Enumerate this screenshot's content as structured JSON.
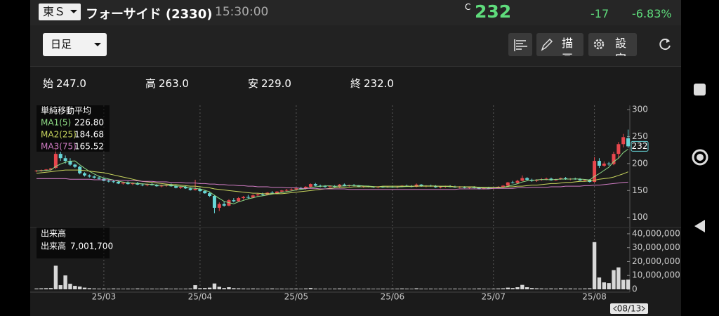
{
  "header": {
    "market": "東Ｓ",
    "name": "フォーサイド (2330)",
    "time": "15:30:00",
    "flag": "C",
    "price": "232",
    "change": "-17",
    "change_pct": "-6.83%"
  },
  "toolbar": {
    "period": "日足",
    "draw": "描画",
    "settings": "設定"
  },
  "ohlc_row": [
    {
      "label": "始",
      "value": "247.0"
    },
    {
      "label": "高",
      "value": "263.0"
    },
    {
      "label": "安",
      "value": "229.0"
    },
    {
      "label": "終",
      "value": "232.0"
    }
  ],
  "chart_data": {
    "type": "candlestick",
    "ma_title": "単純移動平均",
    "up_color": "#e8474d",
    "down_color": "#67d6d8",
    "cursor_date": "08/13",
    "grid": true,
    "categories": [
      null,
      null,
      null,
      null,
      null,
      null,
      null,
      null,
      null,
      null,
      null,
      null,
      null,
      null,
      "25/03",
      null,
      null,
      null,
      null,
      null,
      null,
      null,
      null,
      null,
      null,
      null,
      null,
      null,
      null,
      null,
      null,
      null,
      null,
      null,
      "25/04",
      null,
      null,
      null,
      null,
      null,
      null,
      null,
      null,
      null,
      null,
      null,
      null,
      null,
      null,
      null,
      null,
      null,
      null,
      null,
      "25/05",
      null,
      null,
      null,
      null,
      null,
      null,
      null,
      null,
      null,
      null,
      null,
      null,
      null,
      null,
      null,
      null,
      null,
      null,
      null,
      "25/06",
      null,
      null,
      null,
      null,
      null,
      null,
      null,
      null,
      null,
      null,
      null,
      null,
      null,
      null,
      null,
      null,
      null,
      null,
      null,
      null,
      "25/07",
      null,
      null,
      null,
      null,
      null,
      null,
      null,
      null,
      null,
      null,
      null,
      null,
      null,
      null,
      null,
      null,
      null,
      null,
      null,
      null,
      "25/08",
      null,
      null,
      null,
      null,
      null,
      null,
      null
    ],
    "ohlc": [
      [
        186,
        188,
        184,
        187
      ],
      [
        187,
        189,
        185,
        188
      ],
      [
        188,
        190,
        186,
        189
      ],
      [
        189,
        192,
        187,
        191
      ],
      [
        192,
        235,
        190,
        218
      ],
      [
        218,
        222,
        205,
        210
      ],
      [
        210,
        215,
        200,
        205
      ],
      [
        205,
        210,
        196,
        198
      ],
      [
        198,
        200,
        192,
        194
      ],
      [
        194,
        196,
        180,
        182
      ],
      [
        182,
        184,
        176,
        178
      ],
      [
        178,
        180,
        174,
        176
      ],
      [
        176,
        178,
        172,
        174
      ],
      [
        174,
        176,
        170,
        172
      ],
      [
        172,
        173,
        167,
        168
      ],
      [
        168,
        170,
        165,
        167
      ],
      [
        167,
        169,
        164,
        166
      ],
      [
        166,
        168,
        162,
        163
      ],
      [
        163,
        166,
        161,
        165
      ],
      [
        165,
        167,
        161,
        162
      ],
      [
        162,
        165,
        160,
        164
      ],
      [
        164,
        166,
        160,
        161
      ],
      [
        161,
        163,
        158,
        160
      ],
      [
        160,
        163,
        158,
        162
      ],
      [
        162,
        164,
        159,
        160
      ],
      [
        160,
        162,
        157,
        158
      ],
      [
        158,
        161,
        156,
        159
      ],
      [
        159,
        162,
        157,
        161
      ],
      [
        161,
        163,
        157,
        158
      ],
      [
        158,
        160,
        154,
        155
      ],
      [
        155,
        158,
        153,
        157
      ],
      [
        157,
        159,
        153,
        154
      ],
      [
        154,
        156,
        150,
        151
      ],
      [
        151,
        170,
        150,
        153
      ],
      [
        153,
        155,
        147,
        149
      ],
      [
        149,
        151,
        144,
        145
      ],
      [
        145,
        147,
        138,
        140
      ],
      [
        140,
        142,
        108,
        118
      ],
      [
        118,
        128,
        112,
        125
      ],
      [
        125,
        130,
        120,
        122
      ],
      [
        122,
        134,
        121,
        132
      ],
      [
        132,
        136,
        128,
        130
      ],
      [
        130,
        138,
        129,
        136
      ],
      [
        136,
        140,
        133,
        138
      ],
      [
        138,
        142,
        135,
        137
      ],
      [
        137,
        143,
        136,
        141
      ],
      [
        141,
        145,
        139,
        143
      ],
      [
        143,
        146,
        140,
        142
      ],
      [
        142,
        147,
        141,
        146
      ],
      [
        146,
        149,
        144,
        145
      ],
      [
        145,
        149,
        143,
        148
      ],
      [
        148,
        151,
        146,
        150
      ],
      [
        150,
        153,
        148,
        151
      ],
      [
        151,
        154,
        149,
        152
      ],
      [
        152,
        155,
        150,
        154
      ],
      [
        154,
        157,
        152,
        153
      ],
      [
        153,
        158,
        152,
        157
      ],
      [
        157,
        163,
        156,
        162
      ],
      [
        162,
        164,
        158,
        159
      ],
      [
        159,
        161,
        156,
        158
      ],
      [
        158,
        160,
        155,
        157
      ],
      [
        157,
        159,
        155,
        158
      ],
      [
        158,
        160,
        156,
        157
      ],
      [
        157,
        162,
        156,
        161
      ],
      [
        161,
        163,
        158,
        159
      ],
      [
        159,
        161,
        157,
        160
      ],
      [
        160,
        162,
        158,
        159
      ],
      [
        159,
        160,
        156,
        157
      ],
      [
        157,
        159,
        155,
        158
      ],
      [
        158,
        159,
        156,
        157
      ],
      [
        157,
        158,
        155,
        156
      ],
      [
        156,
        158,
        154,
        157
      ],
      [
        157,
        158,
        155,
        156
      ],
      [
        156,
        158,
        155,
        157
      ],
      [
        157,
        159,
        155,
        156
      ],
      [
        156,
        158,
        154,
        157
      ],
      [
        157,
        160,
        156,
        159
      ],
      [
        159,
        161,
        157,
        158
      ],
      [
        158,
        160,
        156,
        157
      ],
      [
        157,
        163,
        156,
        161
      ],
      [
        161,
        162,
        157,
        158
      ],
      [
        158,
        160,
        156,
        159
      ],
      [
        159,
        161,
        157,
        158
      ],
      [
        158,
        160,
        155,
        156
      ],
      [
        156,
        158,
        154,
        157
      ],
      [
        157,
        159,
        155,
        158
      ],
      [
        158,
        160,
        156,
        157
      ],
      [
        157,
        159,
        155,
        156
      ],
      [
        156,
        158,
        154,
        157
      ],
      [
        157,
        158,
        154,
        155
      ],
      [
        155,
        157,
        153,
        156
      ],
      [
        156,
        158,
        154,
        155
      ],
      [
        155,
        157,
        152,
        153
      ],
      [
        153,
        156,
        152,
        155
      ],
      [
        155,
        157,
        153,
        154
      ],
      [
        154,
        156,
        152,
        155
      ],
      [
        155,
        158,
        154,
        157
      ],
      [
        157,
        160,
        156,
        159
      ],
      [
        159,
        166,
        158,
        165
      ],
      [
        165,
        168,
        163,
        164
      ],
      [
        164,
        170,
        163,
        168
      ],
      [
        168,
        178,
        167,
        173
      ],
      [
        173,
        175,
        168,
        170
      ],
      [
        170,
        172,
        166,
        168
      ],
      [
        168,
        171,
        166,
        170
      ],
      [
        170,
        173,
        168,
        171
      ],
      [
        171,
        174,
        169,
        172
      ],
      [
        172,
        174,
        168,
        169
      ],
      [
        169,
        172,
        168,
        171
      ],
      [
        171,
        174,
        170,
        173
      ],
      [
        173,
        175,
        170,
        171
      ],
      [
        171,
        173,
        169,
        172
      ],
      [
        172,
        174,
        170,
        171
      ],
      [
        171,
        173,
        168,
        169
      ],
      [
        169,
        171,
        167,
        170
      ],
      [
        170,
        171,
        165,
        166
      ],
      [
        166,
        212,
        165,
        205
      ],
      [
        205,
        210,
        192,
        196
      ],
      [
        196,
        204,
        194,
        200
      ],
      [
        200,
        203,
        196,
        199
      ],
      [
        199,
        222,
        197,
        218
      ],
      [
        218,
        240,
        210,
        236
      ],
      [
        236,
        255,
        230,
        249
      ],
      [
        247,
        263,
        229,
        232
      ]
    ],
    "ylim": [
      84,
      308
    ],
    "yticks": [
      100,
      150,
      200,
      250,
      300
    ],
    "series": [
      {
        "name": "MA1(5)",
        "color": "#8fdc86",
        "legend_value": "226.80",
        "values": [
          186.4,
          186.8,
          187.4,
          188.2,
          194.6,
          199.2,
          202.4,
          204.4,
          205,
          197.8,
          191.4,
          185.6,
          180.8,
          176.4,
          173.6,
          171.4,
          169.4,
          167.2,
          165.8,
          164.6,
          164,
          163,
          162.4,
          161.8,
          161.4,
          160.2,
          159.8,
          160,
          159.2,
          158.6,
          158,
          157,
          155,
          154,
          152.8,
          150.4,
          147.6,
          141,
          135.4,
          130,
          127.4,
          125.4,
          129,
          131.6,
          134.6,
          136.4,
          139,
          140.2,
          141.8,
          143.4,
          144.8,
          146.2,
          148,
          149.2,
          151,
          152,
          153.4,
          155.6,
          157,
          157.8,
          158.6,
          158.8,
          157.8,
          158.2,
          158.4,
          159,
          159.2,
          159.2,
          158.6,
          158.2,
          157.4,
          157,
          156.8,
          156.6,
          156.4,
          156.6,
          157,
          157.4,
          157.4,
          158.4,
          158.6,
          158.6,
          158.6,
          158.4,
          157.6,
          157.6,
          157.2,
          156.8,
          157,
          156.6,
          156.2,
          155.8,
          155.2,
          154.8,
          154.6,
          154.4,
          155,
          156,
          158,
          160,
          162.6,
          165.8,
          168,
          168.6,
          169.8,
          170.4,
          170.2,
          170,
          170.6,
          171.2,
          171.2,
          171.2,
          171.6,
          171.2,
          170.6,
          169.6,
          176.2,
          181.2,
          187.4,
          193.2,
          203.6,
          209.8,
          220.4,
          226.8
        ]
      },
      {
        "name": "MA2(25)",
        "color": "#c9d65e",
        "legend_value": "184.68",
        "values": [
          182,
          183,
          184,
          185,
          186,
          187,
          188,
          188,
          188,
          188,
          187,
          186,
          185,
          184,
          183,
          181,
          179,
          177,
          175,
          173,
          171,
          169,
          167,
          166,
          165,
          164,
          163,
          162,
          161,
          161,
          160,
          159,
          158,
          158,
          157,
          156,
          155,
          153,
          152,
          151,
          150,
          149,
          148,
          147,
          146,
          145,
          145,
          144,
          144,
          144,
          144,
          144,
          145,
          146,
          147,
          148,
          149,
          150,
          151,
          152,
          153,
          154,
          155,
          155,
          156,
          156,
          157,
          157,
          157,
          157,
          157,
          157,
          158,
          158,
          158,
          158,
          158,
          158,
          158,
          158,
          158,
          158,
          158,
          158,
          158,
          158,
          158,
          157,
          157,
          157,
          157,
          157,
          156,
          156,
          156,
          156,
          156,
          156,
          157,
          157,
          158,
          158,
          159,
          160,
          160,
          161,
          162,
          163,
          163,
          164,
          165,
          165,
          166,
          167,
          167,
          168,
          169,
          171,
          172,
          173,
          175,
          178,
          181,
          184.68
        ]
      },
      {
        "name": "MA3(75)",
        "color": "#d07cc4",
        "legend_value": "165.52",
        "values": [
          172,
          172,
          172,
          172,
          172,
          172,
          172,
          171,
          171,
          171,
          171,
          171,
          170,
          170,
          170,
          170,
          169,
          169,
          169,
          168,
          168,
          168,
          167,
          167,
          167,
          166,
          166,
          166,
          165,
          165,
          165,
          164,
          164,
          164,
          163,
          163,
          162,
          162,
          161,
          161,
          160,
          160,
          159,
          159,
          158,
          158,
          157,
          157,
          157,
          156,
          156,
          156,
          155,
          155,
          155,
          154,
          154,
          154,
          154,
          153,
          153,
          153,
          153,
          153,
          153,
          152,
          152,
          152,
          152,
          152,
          152,
          152,
          152,
          152,
          152,
          152,
          152,
          152,
          152,
          152,
          152,
          152,
          152,
          152,
          152,
          152,
          152,
          152,
          153,
          153,
          153,
          153,
          153,
          153,
          153,
          154,
          154,
          154,
          154,
          154,
          155,
          155,
          155,
          156,
          156,
          156,
          156,
          157,
          157,
          157,
          158,
          158,
          158,
          158,
          159,
          159,
          160,
          160,
          161,
          162,
          163,
          164,
          165,
          165.52
        ]
      }
    ],
    "volume": {
      "title": "出来高",
      "name": "出来高",
      "legend_value": "7,001,700",
      "color": "#d8d8d8",
      "ylim": [
        0,
        43500000
      ],
      "yticks": [
        0,
        {
          "value": 10000000,
          "label": "10,000,000"
        },
        {
          "value": 20000000,
          "label": "20,000,000"
        },
        {
          "value": 30000000,
          "label": "30,000,000"
        },
        {
          "value": 40000000,
          "label": "40,000,000"
        }
      ],
      "values": [
        600000,
        700000,
        800000,
        900000,
        17000000,
        3000000,
        10000000,
        4000000,
        2500000,
        2000000,
        1200000,
        800000,
        600000,
        500000,
        500000,
        400000,
        600000,
        500000,
        400000,
        500000,
        400000,
        600000,
        500000,
        400000,
        500000,
        400000,
        500000,
        600000,
        400000,
        500000,
        400000,
        500000,
        600000,
        3000000,
        800000,
        900000,
        1200000,
        4200000,
        1800000,
        900000,
        1500000,
        800000,
        700000,
        600000,
        500000,
        600000,
        500000,
        400000,
        500000,
        600000,
        400000,
        500000,
        400000,
        500000,
        500000,
        400000,
        600000,
        900000,
        500000,
        400000,
        500000,
        400000,
        500000,
        600000,
        500000,
        400000,
        500000,
        400000,
        400000,
        500000,
        400000,
        400000,
        500000,
        400000,
        400000,
        500000,
        600000,
        500000,
        400000,
        700000,
        500000,
        400000,
        500000,
        400000,
        500000,
        400000,
        400000,
        500000,
        400000,
        500000,
        400000,
        500000,
        600000,
        500000,
        400000,
        500000,
        600000,
        700000,
        1200000,
        900000,
        1500000,
        3200000,
        1500000,
        900000,
        700000,
        600000,
        500000,
        600000,
        500000,
        700000,
        500000,
        600000,
        500000,
        500000,
        600000,
        700000,
        34000000,
        8500000,
        5000000,
        4500000,
        13800000,
        15800000,
        6800000,
        7001700
      ]
    }
  }
}
